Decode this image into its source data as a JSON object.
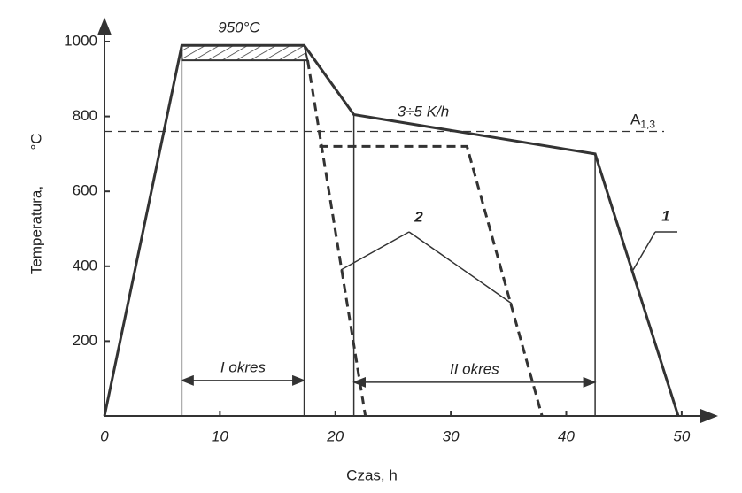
{
  "chart_data": {
    "type": "line",
    "xlabel": "Czas,  h",
    "ylabel": "Temperatura,",
    "yunit": "°C",
    "xlim": [
      0,
      53
    ],
    "ylim": [
      0,
      1060
    ],
    "xticks": [
      0,
      10,
      20,
      30,
      40,
      50
    ],
    "yticks": [
      200,
      400,
      600,
      800,
      1000
    ],
    "series": [
      {
        "name": "1",
        "color": "#333333",
        "dashed": false,
        "x": [
          0,
          6.7,
          17.3,
          21.6,
          42.5,
          49.7
        ],
        "values": [
          0,
          990,
          990,
          805,
          700,
          0
        ]
      },
      {
        "name": "2",
        "color": "#333333",
        "dashed": true,
        "x": [
          17.6,
          22.6,
          null,
          18.6,
          31.4,
          37.9
        ],
        "values": [
          950,
          0,
          null,
          720,
          720,
          0
        ]
      }
    ],
    "band_lower": 950,
    "hline": {
      "value": 760,
      "label": "A",
      "sub": "1,3"
    },
    "periods": [
      {
        "label": "I okres",
        "x": [
          6.7,
          17.3
        ],
        "y": 95
      },
      {
        "label": "II okres",
        "x": [
          21.6,
          42.5
        ],
        "y": 90
      }
    ],
    "annotations": [
      "950°C",
      "3÷5 K/h"
    ]
  }
}
